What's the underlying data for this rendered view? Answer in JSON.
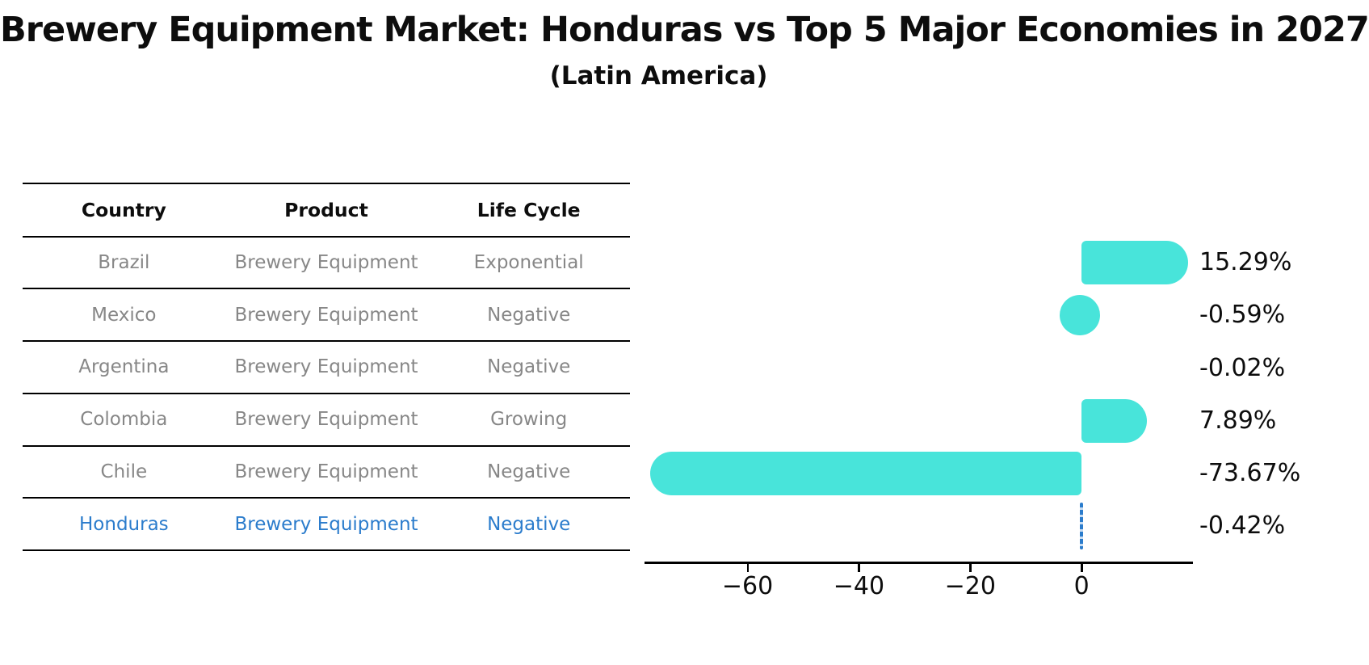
{
  "header": {
    "title": "Brewery Equipment Market: Honduras vs Top 5 Major Economies in 2027",
    "subtitle": "(Latin America)"
  },
  "colors": {
    "bar": "#48e4da",
    "highlight": "#2b7ccc",
    "table_text": "#878787",
    "ink": "#0d0d0d"
  },
  "table": {
    "headers": [
      "Country",
      "Product",
      "Life Cycle"
    ],
    "rows": [
      {
        "country": "Brazil",
        "product": "Brewery Equipment",
        "life_cycle": "Exponential"
      },
      {
        "country": "Mexico",
        "product": "Brewery Equipment",
        "life_cycle": "Negative"
      },
      {
        "country": "Argentina",
        "product": "Brewery Equipment",
        "life_cycle": "Negative"
      },
      {
        "country": "Colombia",
        "product": "Brewery Equipment",
        "life_cycle": "Growing"
      },
      {
        "country": "Chile",
        "product": "Brewery Equipment",
        "life_cycle": "Negative"
      },
      {
        "country": "Honduras",
        "product": "Brewery Equipment",
        "life_cycle": "Negative"
      }
    ],
    "highlight_row": "Honduras"
  },
  "chart_data": {
    "type": "bar",
    "orientation": "horizontal",
    "title": "Brewery Equipment Market: Honduras vs Top 5 Major Economies in 2027",
    "subtitle": "(Latin America)",
    "categories": [
      "Brazil",
      "Mexico",
      "Argentina",
      "Colombia",
      "Chile",
      "Honduras"
    ],
    "values": [
      15.29,
      -0.59,
      -0.02,
      7.89,
      -73.67,
      -0.42
    ],
    "labels": [
      "15.29%",
      "-0.59%",
      "-0.02%",
      "7.89%",
      "-73.67%",
      "-0.42%"
    ],
    "x_ticks": [
      {
        "value": -60,
        "label": "−60"
      },
      {
        "value": -40,
        "label": "−40"
      },
      {
        "value": -20,
        "label": "−20"
      },
      {
        "value": 0,
        "label": "0"
      }
    ],
    "xlim": [
      -78.5,
      20
    ],
    "grid": false,
    "legend": null,
    "bar_color": "#48e4da",
    "highlight_index": 5,
    "highlight_color": "#2b7ccc"
  }
}
